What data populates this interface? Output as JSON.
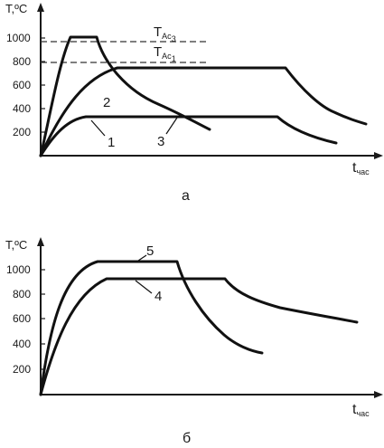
{
  "top_chart": {
    "y_axis_label": "T,ºC",
    "y_ticks": [
      "1000",
      "800",
      "600",
      "400",
      "200"
    ],
    "x_axis_label": "t",
    "x_axis_label_sub": "час",
    "critical_lines": [
      {
        "name": "T",
        "sub": "Ac",
        "index": "3",
        "temperature_c": 950
      },
      {
        "name": "T",
        "sub": "Ac",
        "index": "1",
        "temperature_c": 770
      }
    ],
    "curve_labels": [
      "1",
      "2",
      "3"
    ],
    "caption": "а"
  },
  "bottom_chart": {
    "y_axis_label": "T,ºC",
    "y_ticks": [
      "1000",
      "800",
      "600",
      "400",
      "200"
    ],
    "x_axis_label": "t",
    "x_axis_label_sub": "час",
    "curve_labels": [
      "5",
      "4"
    ],
    "caption": "б"
  },
  "colors": {
    "line": "#111111",
    "text": "#1a1a1a",
    "background": "#ffffff"
  }
}
